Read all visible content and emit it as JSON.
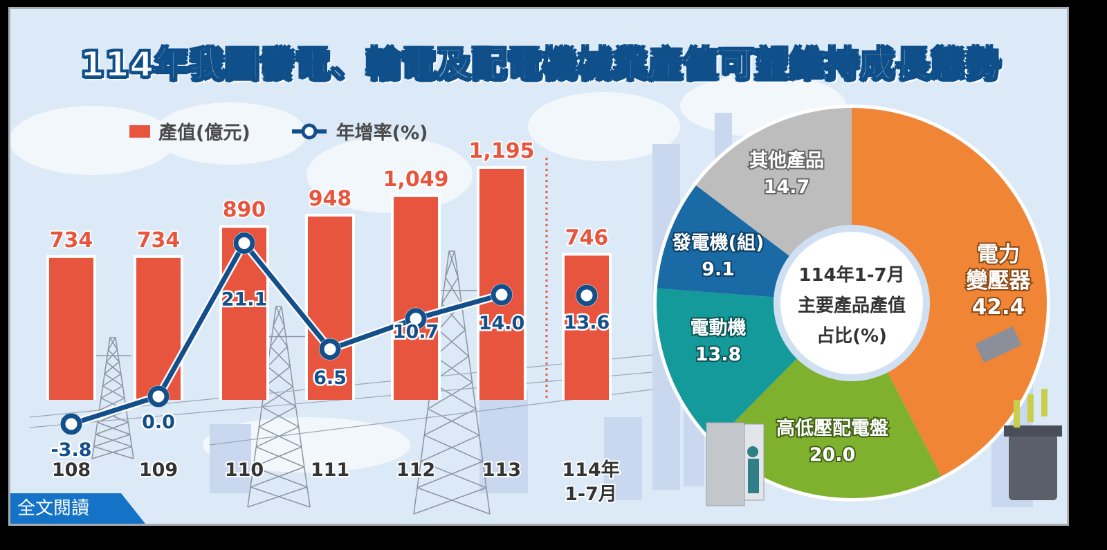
{
  "title": "114年我國發電、輸電及配電機械業產值可望維持成長態勢",
  "legend": {
    "bar_label": "產值(億元)",
    "line_label": "年增率(%)"
  },
  "read_more_button": "全文閱讀",
  "colors": {
    "bar": "#e8553f",
    "line": "#134f8a",
    "background": "#dce9f6",
    "pie_transformer": "#f08536",
    "pie_switchgear": "#7fb12f",
    "pie_motor": "#159a9c",
    "pie_generator": "#1a6aa6",
    "pie_other": "#bdbdbd"
  },
  "chart_data": [
    {
      "type": "bar+line",
      "categories": [
        "108",
        "109",
        "110",
        "111",
        "112",
        "113",
        "114年\n1-7月"
      ],
      "category_labels": [
        {
          "line1": "108",
          "line2": ""
        },
        {
          "line1": "109",
          "line2": ""
        },
        {
          "line1": "110",
          "line2": ""
        },
        {
          "line1": "111",
          "line2": ""
        },
        {
          "line1": "112",
          "line2": ""
        },
        {
          "line1": "113",
          "line2": ""
        },
        {
          "line1": "114年",
          "line2": "1-7月"
        }
      ],
      "series": [
        {
          "name": "產值(億元)",
          "type": "bar",
          "values": [
            734,
            734,
            890,
            948,
            1049,
            1195,
            746
          ],
          "labels": [
            "734",
            "734",
            "890",
            "948",
            "1,049",
            "1,195",
            "746"
          ]
        },
        {
          "name": "年增率(%)",
          "type": "line",
          "values": [
            -3.8,
            0.0,
            21.1,
            6.5,
            10.7,
            14.0,
            13.6
          ],
          "labels": [
            "-3.8",
            "0.0",
            "21.1",
            "6.5",
            "10.7",
            "14.0",
            "13.6"
          ]
        }
      ],
      "annotations": [
        "dotted separator between 113 and 114年1-7月; last point not connected"
      ],
      "grid": false,
      "legend_position": "top-left"
    },
    {
      "type": "pie",
      "variant": "donut",
      "title": "114年1-7月 主要產品產值 占比(%)",
      "center_text": [
        "114年1-7月",
        "主要產品產值",
        "占比(%)"
      ],
      "slices": [
        {
          "name": "電力變壓器",
          "label_lines": [
            "電力",
            "變壓器"
          ],
          "value": 42.4,
          "value_label": "42.4"
        },
        {
          "name": "高低壓配電盤",
          "label_lines": [
            "高低壓配電盤"
          ],
          "value": 20.0,
          "value_label": "20.0"
        },
        {
          "name": "電動機",
          "label_lines": [
            "電動機"
          ],
          "value": 13.8,
          "value_label": "13.8"
        },
        {
          "name": "發電機(組)",
          "label_lines": [
            "發電機(組)"
          ],
          "value": 9.1,
          "value_label": "9.1"
        },
        {
          "name": "其他產品",
          "label_lines": [
            "其他產品"
          ],
          "value": 14.7,
          "value_label": "14.7"
        }
      ]
    }
  ]
}
